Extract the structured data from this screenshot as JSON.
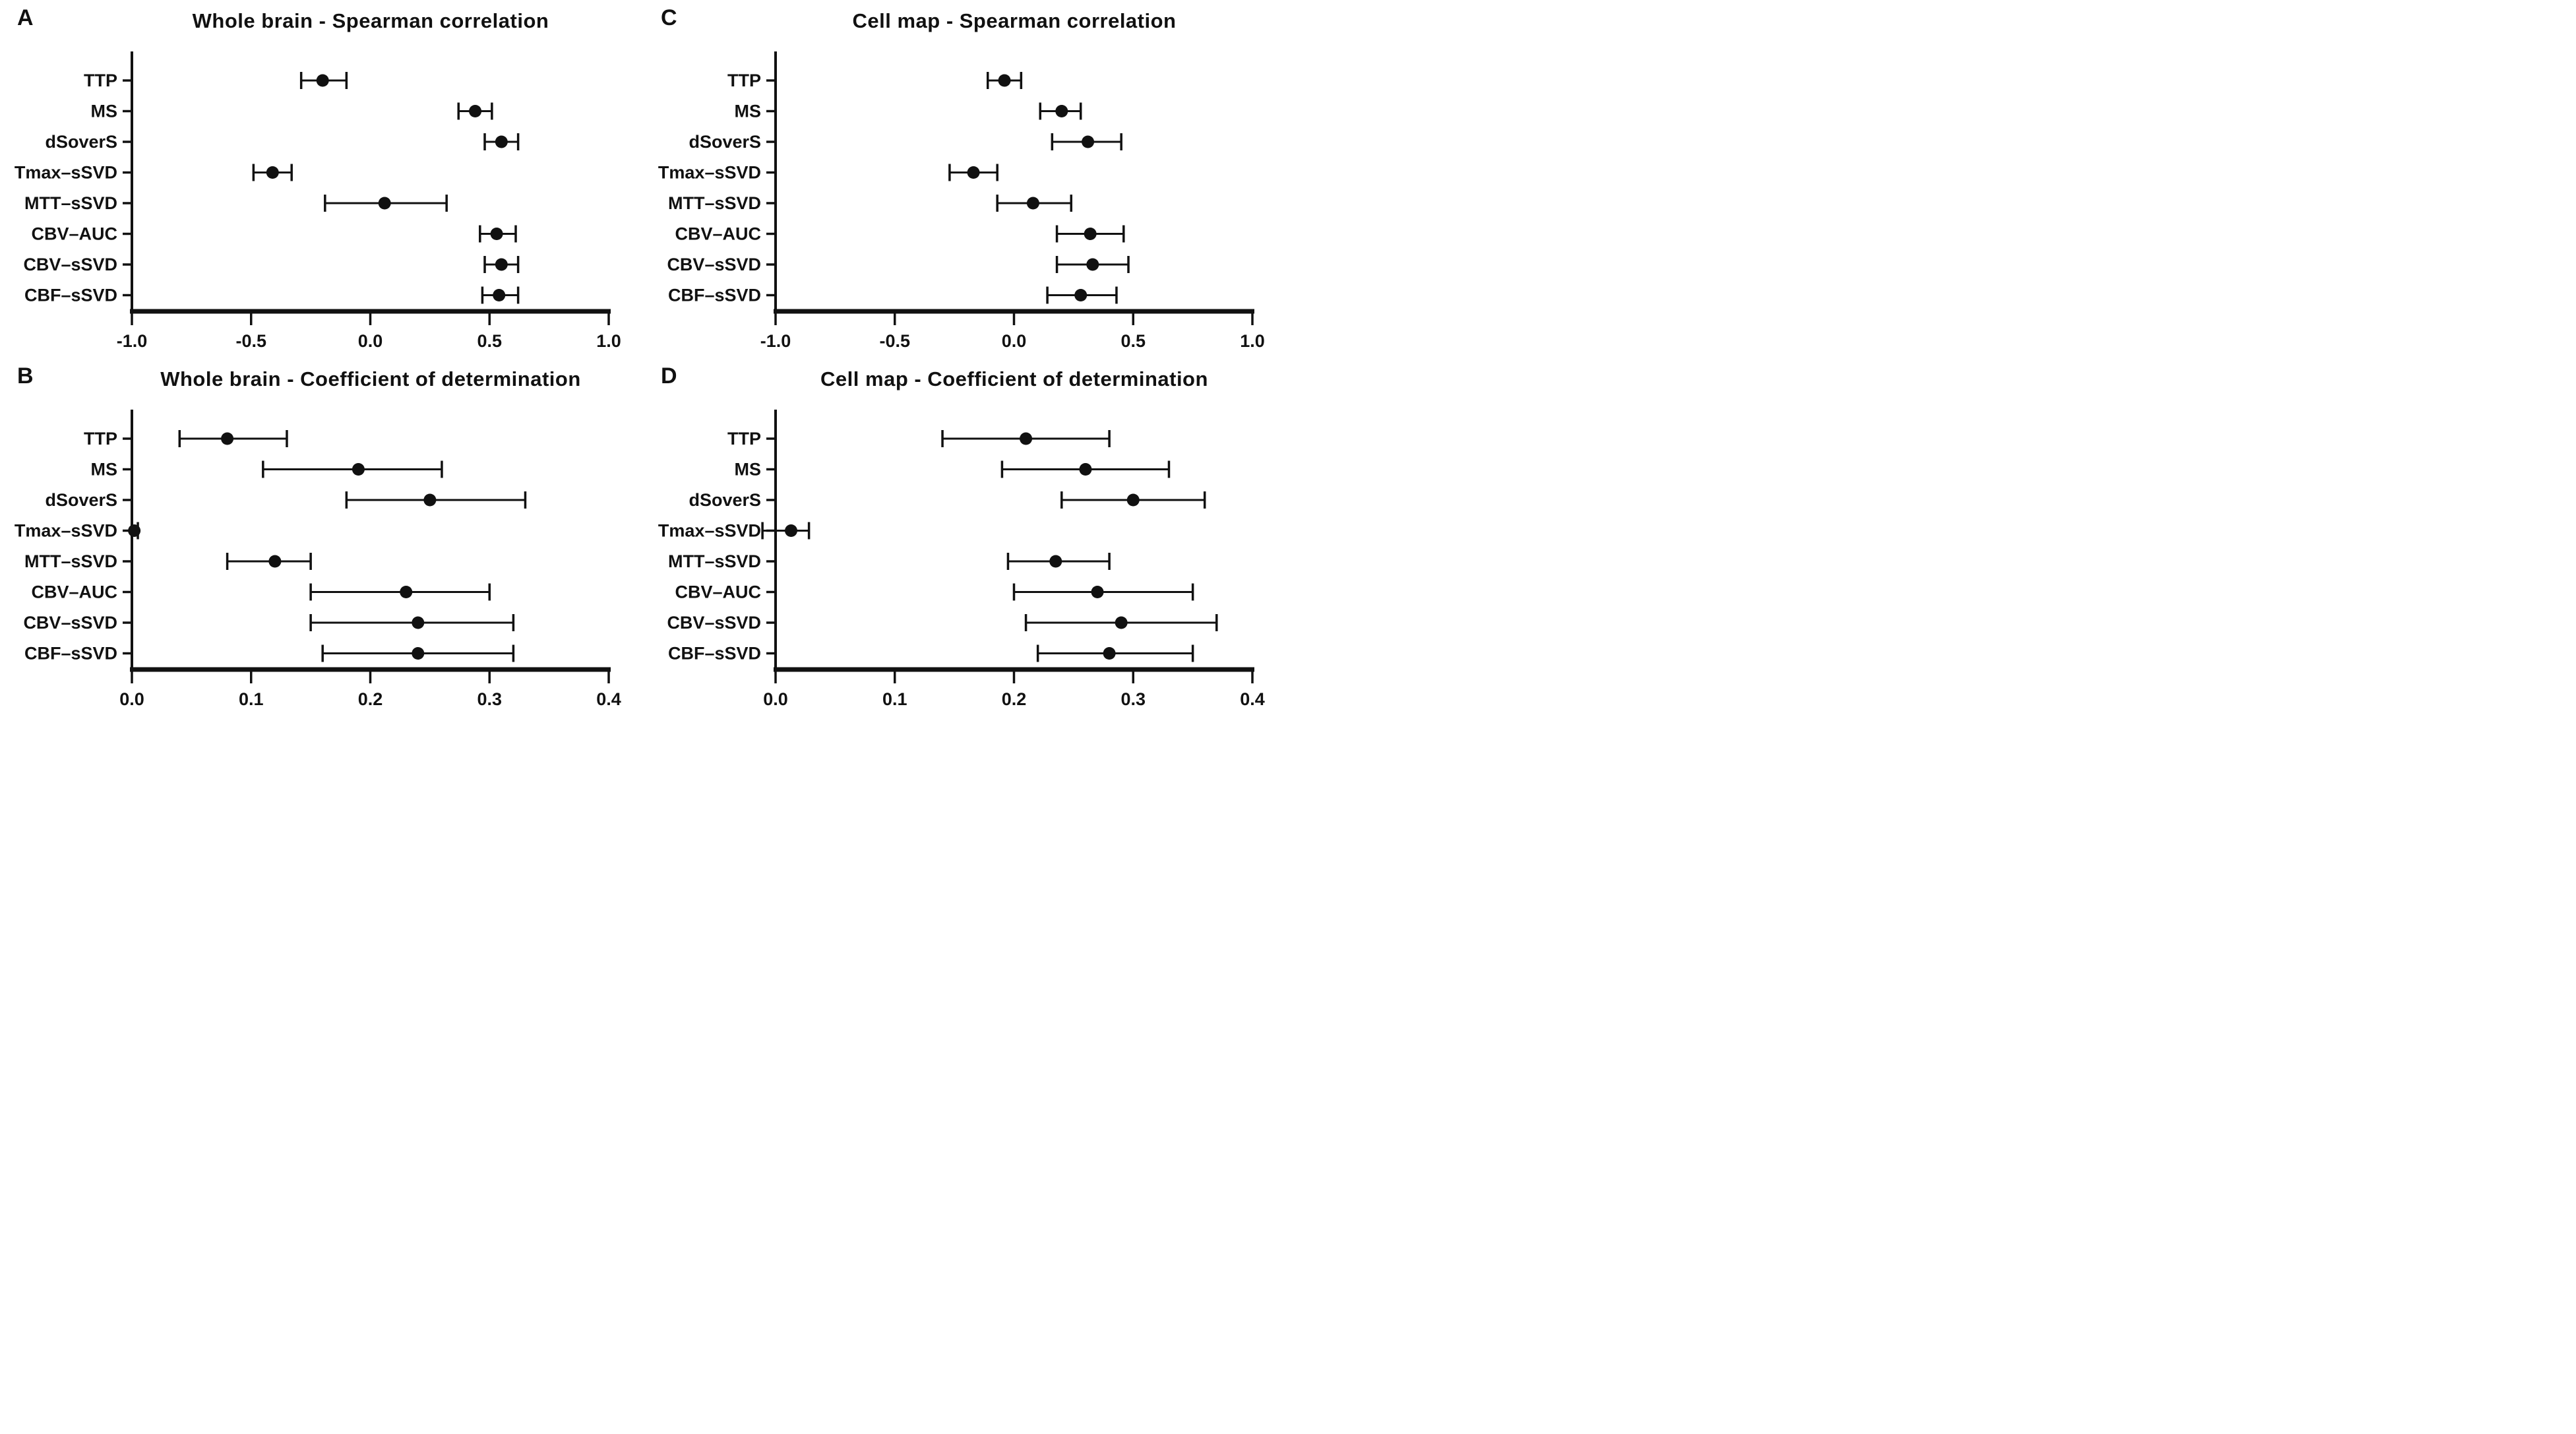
{
  "figure": {
    "background_color": "#ffffff",
    "marker_color": "#000000",
    "description": "Four forest-style dot plots with 95% confidence interval error bars comparing perfusion parameters"
  },
  "chart_data": [
    {
      "panel": "A",
      "type": "scatter",
      "subtype": "dot-with-error-bars",
      "title": "Whole brain - Spearman correlation",
      "legend_position": "none",
      "grid": false,
      "categories": [
        "TTP",
        "MS",
        "dSoverS",
        "Tmax–sSVD",
        "MTT–sSVD",
        "CBV–AUC",
        "CBV–sSVD",
        "CBF–sSVD"
      ],
      "values": [
        -0.2,
        0.44,
        0.55,
        -0.41,
        0.06,
        0.53,
        0.55,
        0.54
      ],
      "ci_low": [
        -0.29,
        0.37,
        0.48,
        -0.49,
        -0.19,
        0.46,
        0.48,
        0.47
      ],
      "ci_high": [
        -0.1,
        0.51,
        0.62,
        -0.33,
        0.32,
        0.61,
        0.62,
        0.62
      ],
      "xlim": [
        -1.0,
        1.0
      ],
      "xticks": [
        -1.0,
        -0.5,
        0.0,
        0.5,
        1.0
      ],
      "xtick_labels": [
        "-1.0",
        "-0.5",
        "0.0",
        "0.5",
        "1.0"
      ],
      "xlabel": "",
      "ylabel": ""
    },
    {
      "panel": "C",
      "type": "scatter",
      "subtype": "dot-with-error-bars",
      "title": "Cell map - Spearman correlation",
      "legend_position": "none",
      "grid": false,
      "categories": [
        "TTP",
        "MS",
        "dSoverS",
        "Tmax–sSVD",
        "MTT–sSVD",
        "CBV–AUC",
        "CBV–sSVD",
        "CBF–sSVD"
      ],
      "values": [
        -0.04,
        0.2,
        0.31,
        -0.17,
        0.08,
        0.32,
        0.33,
        0.28
      ],
      "ci_low": [
        -0.11,
        0.11,
        0.16,
        -0.27,
        -0.07,
        0.18,
        0.18,
        0.14
      ],
      "ci_high": [
        0.03,
        0.28,
        0.45,
        -0.07,
        0.24,
        0.46,
        0.48,
        0.43
      ],
      "xlim": [
        -1.0,
        1.0
      ],
      "xticks": [
        -1.0,
        -0.5,
        0.0,
        0.5,
        1.0
      ],
      "xtick_labels": [
        "-1.0",
        "-0.5",
        "0.0",
        "0.5",
        "1.0"
      ],
      "xlabel": "",
      "ylabel": ""
    },
    {
      "panel": "B",
      "type": "scatter",
      "subtype": "dot-with-error-bars",
      "title": "Whole brain - Coefficient of determination",
      "legend_position": "none",
      "grid": false,
      "categories": [
        "TTP",
        "MS",
        "dSoverS",
        "Tmax–sSVD",
        "MTT–sSVD",
        "CBV–AUC",
        "CBV–sSVD",
        "CBF–sSVD"
      ],
      "values": [
        0.08,
        0.19,
        0.25,
        0.002,
        0.12,
        0.23,
        0.24,
        0.24
      ],
      "ci_low": [
        0.04,
        0.11,
        0.18,
        0.0,
        0.08,
        0.15,
        0.15,
        0.16
      ],
      "ci_high": [
        0.13,
        0.26,
        0.33,
        0.005,
        0.15,
        0.3,
        0.32,
        0.32
      ],
      "xlim": [
        0.0,
        0.4
      ],
      "xticks": [
        0.0,
        0.1,
        0.2,
        0.3,
        0.4
      ],
      "xtick_labels": [
        "0.0",
        "0.1",
        "0.2",
        "0.3",
        "0.4"
      ],
      "xlabel": "",
      "ylabel": ""
    },
    {
      "panel": "D",
      "type": "scatter",
      "subtype": "dot-with-error-bars",
      "title": "Cell map - Coefficient of determination",
      "legend_position": "none",
      "grid": false,
      "categories": [
        "TTP",
        "MS",
        "dSoverS",
        "Tmax–sSVD",
        "MTT–sSVD",
        "CBV–AUC",
        "CBV–sSVD",
        "CBF–sSVD"
      ],
      "values": [
        0.21,
        0.26,
        0.3,
        0.013,
        0.235,
        0.27,
        0.29,
        0.28
      ],
      "ci_low": [
        0.14,
        0.19,
        0.24,
        -0.011,
        0.195,
        0.2,
        0.21,
        0.22
      ],
      "ci_high": [
        0.28,
        0.33,
        0.36,
        0.028,
        0.28,
        0.35,
        0.37,
        0.35
      ],
      "xlim": [
        0.0,
        0.4
      ],
      "xticks": [
        0.0,
        0.1,
        0.2,
        0.3,
        0.4
      ],
      "xtick_labels": [
        "0.0",
        "0.1",
        "0.2",
        "0.3",
        "0.4"
      ],
      "xlabel": "",
      "ylabel": ""
    }
  ]
}
